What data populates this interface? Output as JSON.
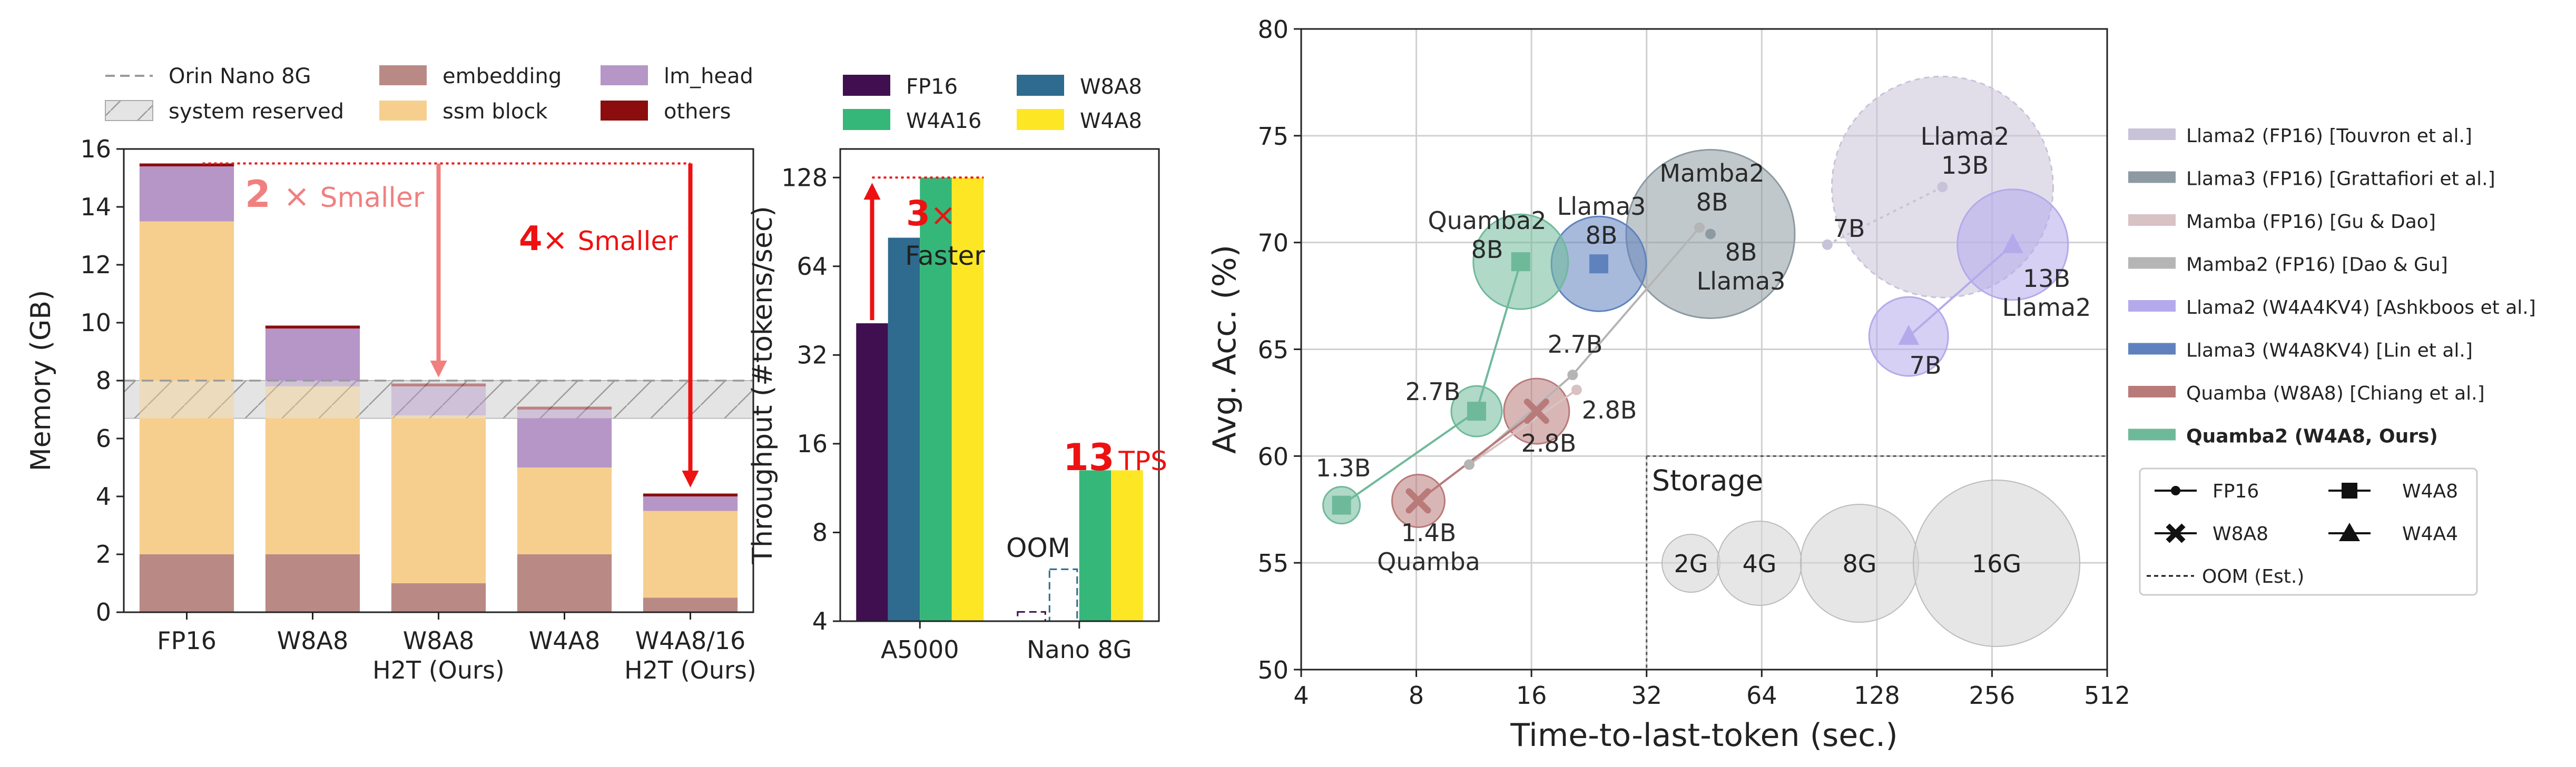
{
  "chart_data": [
    {
      "type": "bar",
      "subtype": "stacked",
      "ylabel": "Memory (GB)",
      "ylim": [
        0,
        16
      ],
      "yticks": [
        "0",
        "2",
        "4",
        "6",
        "8",
        "10",
        "12",
        "14",
        "16"
      ],
      "categories": [
        "FP16",
        "W8A8",
        "W8A8\nH2T (Ours)",
        "W4A8",
        "W4A8/16\nH2T (Ours)"
      ],
      "series": [
        {
          "name": "embedding",
          "color": "#b98a85",
          "values": [
            2.0,
            2.0,
            1.0,
            2.0,
            0.5
          ]
        },
        {
          "name": "ssm block",
          "color": "#f6cf8e",
          "values": [
            11.5,
            5.8,
            5.8,
            3.0,
            3.0
          ]
        },
        {
          "name": "lm_head",
          "color": "#b596c6",
          "values": [
            1.9,
            2.0,
            1.0,
            2.0,
            0.5
          ]
        },
        {
          "name": "others",
          "color": "#8b0d0d",
          "values": [
            0.1,
            0.1,
            0.1,
            0.1,
            0.1
          ]
        }
      ],
      "reference": {
        "name": "Orin Nano 8G",
        "value": 8.0
      },
      "reserved_band": {
        "name": "system reserved",
        "range": [
          6.7,
          8.0
        ]
      },
      "annotations": [
        {
          "text_factor": "2",
          "text_symbol": "×",
          "text_word": "Smaller",
          "color": "#f08080",
          "from": 15.5,
          "to": 8.0
        },
        {
          "text_factor": "4",
          "text_symbol": "×",
          "text_word": "Smaller",
          "color": "#ee1111",
          "from": 15.5,
          "to": 4.2
        }
      ],
      "legend": [
        "Orin Nano 8G",
        "embedding",
        "lm_head",
        "system reserved",
        "ssm block",
        "others"
      ]
    },
    {
      "type": "bar",
      "ylabel": "Throughput (#tokens/sec)",
      "yscale": "log2",
      "ylim": [
        4,
        160
      ],
      "yticks": [
        "4",
        "8",
        "16",
        "32",
        "64",
        "128"
      ],
      "categories": [
        "A5000",
        "Nano 8G"
      ],
      "series": [
        {
          "name": "FP16",
          "color": "#3f0f50",
          "values": [
            41,
            null
          ]
        },
        {
          "name": "W8A8",
          "color": "#2e6b8e",
          "values": [
            80,
            null
          ]
        },
        {
          "name": "W4A16",
          "color": "#35b779",
          "values": [
            128,
            13
          ]
        },
        {
          "name": "W4A8",
          "color": "#fde725",
          "values": [
            128,
            13
          ]
        }
      ],
      "oom": {
        "label": "OOM",
        "series": [
          "FP16",
          "W8A8"
        ],
        "estimated": [
          4.3,
          6.0
        ]
      },
      "annotations": [
        {
          "factor": "3",
          "symbol": "×",
          "word": "Faster",
          "color": "#ee1111"
        },
        {
          "number": "13",
          "unit": "TPS",
          "color": "#ee1111"
        }
      ]
    },
    {
      "type": "scatter",
      "subtype": "bubble",
      "xlabel": "Time-to-last-token (sec.)",
      "ylabel": "Avg. Acc. (%)",
      "xscale": "log2",
      "xlim": [
        4,
        512
      ],
      "ylim": [
        50,
        80
      ],
      "xticks": [
        "4",
        "8",
        "16",
        "32",
        "64",
        "128",
        "256",
        "512"
      ],
      "yticks": [
        "50",
        "55",
        "60",
        "65",
        "70",
        "75",
        "80"
      ],
      "series": [
        {
          "name": "Llama2 (FP16) [Touvron et al.]",
          "color": "#c8c3d8",
          "marker": "o",
          "points": [
            {
              "x": 95,
              "y": 69.9,
              "label": "7B"
            },
            {
              "x": 190,
              "y": 72.6,
              "label": "Llama2\n13B"
            }
          ]
        },
        {
          "name": "Llama3 (FP16) [Grattafiori et al.]",
          "color": "#8e9aa2",
          "marker": "o",
          "points": [
            {
              "x": 47,
              "y": 70.4,
              "label": "8B\nLlama3"
            }
          ]
        },
        {
          "name": "Mamba (FP16) [Gu & Dao]",
          "color": "#d8c2c4",
          "marker": "o",
          "points": [
            {
              "x": 11,
              "y": 59.6,
              "label": ""
            },
            {
              "x": 21,
              "y": 63.1,
              "label": "2.8B"
            }
          ]
        },
        {
          "name": "Mamba2 (FP16) [Dao & Gu]",
          "color": "#b5b5b5",
          "marker": "o",
          "points": [
            {
              "x": 11,
              "y": 59.6,
              "label": ""
            },
            {
              "x": 20.5,
              "y": 63.8,
              "label": "2.7B"
            },
            {
              "x": 44,
              "y": 70.7,
              "label": "Mamba2\n8B"
            }
          ]
        },
        {
          "name": "Llama2 (W4A4KV4) [Ashkboos et al.]",
          "color": "#b4aaeb",
          "marker": "^",
          "points": [
            {
              "x": 155,
              "y": 65.6,
              "label": "7B"
            },
            {
              "x": 290,
              "y": 69.9,
              "label": "13B\nLlama2"
            }
          ]
        },
        {
          "name": "Llama3 (W4A8KV4) [Lin et al.]",
          "color": "#5f82bf",
          "marker": "s",
          "points": [
            {
              "x": 24,
              "y": 69.0,
              "label": "Llama3\n8B"
            }
          ]
        },
        {
          "name": "Quamba (W8A8) [Chiang et al.]",
          "color": "#b97a7a",
          "marker": "X",
          "points": [
            {
              "x": 8.1,
              "y": 57.9,
              "label": "1.4B\nQuamba"
            },
            {
              "x": 16.5,
              "y": 62.1,
              "label": "2.8B"
            }
          ]
        },
        {
          "name": "Quamba2 (W4A8, Ours)",
          "color": "#6fb99b",
          "marker": "s",
          "points": [
            {
              "x": 5.1,
              "y": 57.7,
              "label": "1.3B"
            },
            {
              "x": 11.5,
              "y": 62.1,
              "label": "2.7B"
            },
            {
              "x": 15,
              "y": 69.1,
              "label": "Quamba2\n8B"
            }
          ]
        }
      ],
      "storage_inset": {
        "title": "Storage",
        "sizes": [
          "2G",
          "4G",
          "8G",
          "16G"
        ]
      },
      "marker_legend": [
        "FP16",
        "W4A8",
        "W8A8",
        "W4A4",
        "OOM (Est.)"
      ]
    }
  ]
}
